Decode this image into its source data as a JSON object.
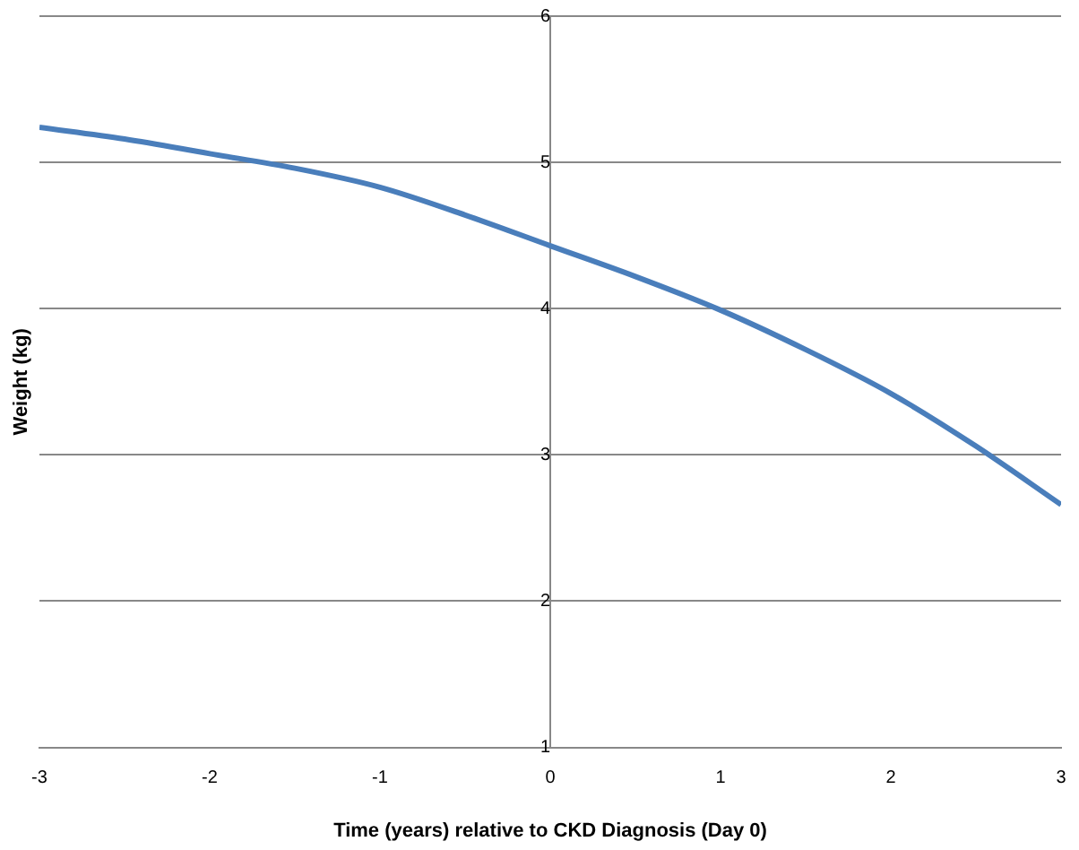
{
  "chart_data": {
    "type": "line",
    "xlabel": "Time (years) relative to CKD Diagnosis (Day 0)",
    "ylabel": "Weight (kg)",
    "x": [
      -3,
      -2.5,
      -2,
      -1.5,
      -1,
      -0.5,
      0,
      0.5,
      1,
      1.5,
      2,
      2.5,
      3
    ],
    "series": [
      {
        "color": "#4a7ebb",
        "values": [
          5.24,
          5.16,
          5.06,
          4.96,
          4.83,
          4.64,
          4.43,
          4.22,
          3.99,
          3.72,
          3.42,
          3.06,
          2.66
        ]
      }
    ],
    "xlim": [
      -3,
      3
    ],
    "xticks": [
      -3,
      -2,
      -1,
      0,
      1,
      2,
      3
    ],
    "ylim": [
      1,
      6
    ],
    "yticks": [
      1,
      2,
      3,
      4,
      5,
      6
    ],
    "grid": "y",
    "legend": false,
    "marker": "none",
    "line_style": "solid"
  }
}
